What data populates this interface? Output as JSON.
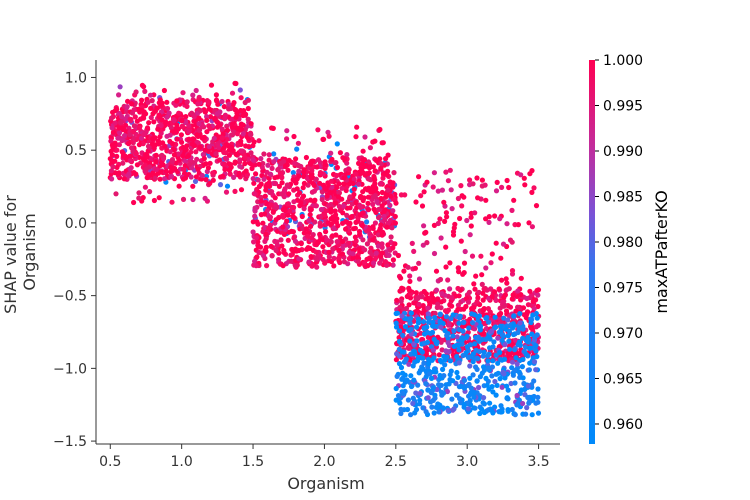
{
  "chart_data": {
    "type": "scatter",
    "title": "",
    "xlabel": "Organism",
    "ylabel_lines": [
      "SHAP value for",
      "Organism"
    ],
    "xlim": [
      0.4,
      3.65
    ],
    "ylim": [
      -1.52,
      1.12
    ],
    "x_ticks": [
      0.5,
      1.0,
      1.5,
      2.0,
      2.5,
      3.0,
      3.5
    ],
    "x_tick_labels": [
      "0.5",
      "1.0",
      "1.5",
      "2.0",
      "2.5",
      "3.0",
      "3.5"
    ],
    "y_ticks": [
      1.0,
      0.5,
      0.0,
      -0.5,
      -1.0,
      -1.5
    ],
    "y_tick_labels": [
      "1.0",
      "0.5",
      "0.0",
      "−0.5",
      "−1.0",
      "−1.5"
    ],
    "grid": false,
    "colorbar": {
      "label": "maxATPafterKO",
      "range": [
        0.9578,
        1.0
      ],
      "ticks": [
        1.0,
        0.995,
        0.99,
        0.985,
        0.98,
        0.975,
        0.97,
        0.965,
        0.96
      ],
      "tick_labels": [
        "1.000",
        "0.995",
        "0.990",
        "0.985",
        "0.980",
        "0.975",
        "0.970",
        "0.965",
        "0.960"
      ],
      "color_low": "#008afb",
      "color_mid": "#7b52d6",
      "color_high": "#ff0052"
    },
    "clusters": [
      {
        "name": "",
        "x_range": [
          0.5,
          1.5
        ],
        "y_range": [
          0.14,
          0.96
        ],
        "core_y": [
          0.3,
          0.85
        ],
        "pink_share": 0.95,
        "blue_y": [
          0.25,
          0.96
        ],
        "count": 900
      },
      {
        "name": "",
        "x_range": [
          1.5,
          2.5
        ],
        "y_range": [
          -0.34,
          0.66
        ],
        "core_y": [
          -0.3,
          0.45
        ],
        "pink_share": 0.93,
        "blue_y": [
          -0.1,
          0.55
        ],
        "count": 1000
      },
      {
        "name": "",
        "x_range": [
          2.5,
          3.5
        ],
        "y_range": [
          -1.39,
          0.37
        ],
        "core_y": [
          -1.3,
          -0.5
        ],
        "pink_share": 0.55,
        "blue_y": [
          -1.3,
          -0.65
        ],
        "count": 1400
      }
    ]
  }
}
